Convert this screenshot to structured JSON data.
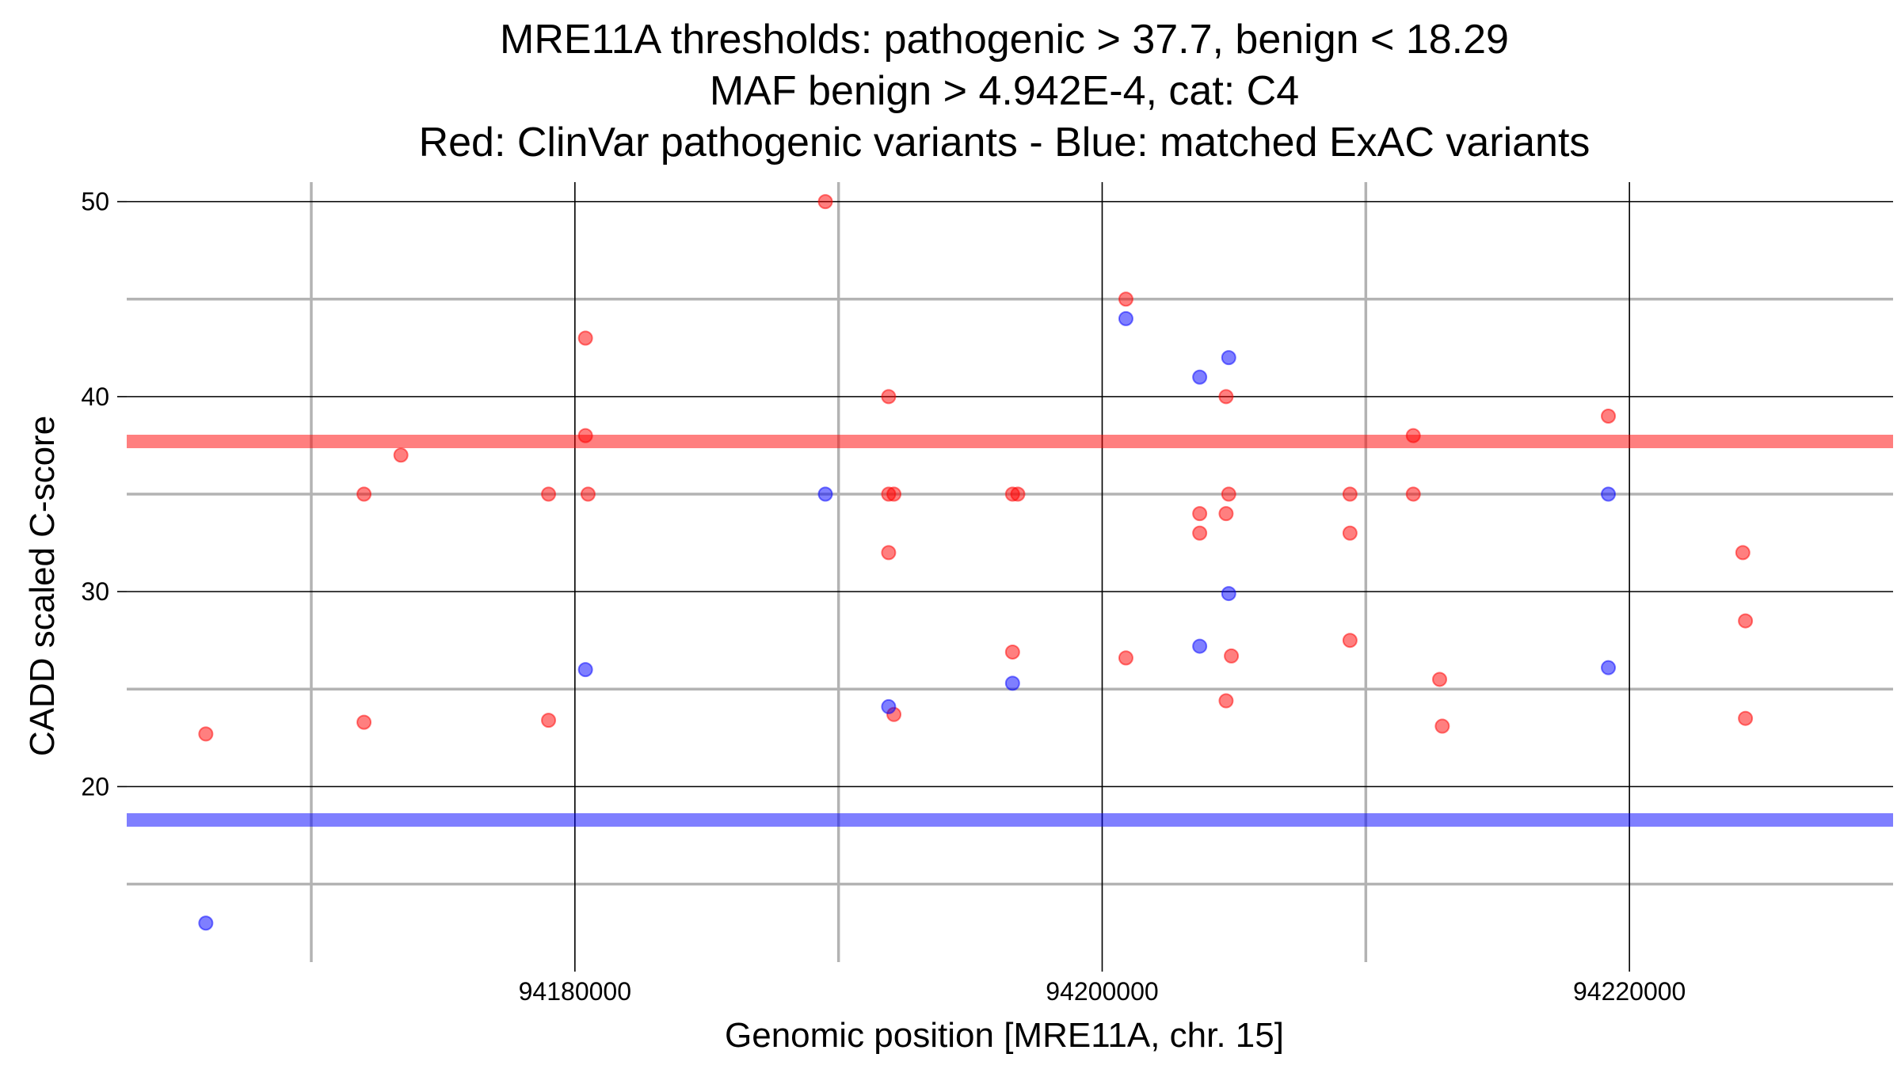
{
  "chart_data": {
    "type": "scatter",
    "title": [
      "MRE11A thresholds: pathogenic > 37.7, benign < 18.29",
      "MAF benign > 4.942E-4, cat: C4",
      "Red: ClinVar pathogenic variants - Blue: matched ExAC variants"
    ],
    "xlabel": "Genomic position [MRE11A, chr. 15]",
    "ylabel": "CADD scaled C-score",
    "xlim": [
      94163000,
      94230000
    ],
    "ylim": [
      11,
      51
    ],
    "x_ticks": [
      94180000,
      94200000,
      94220000
    ],
    "x_tick_labels": [
      "94180000",
      "94200000",
      "94220000"
    ],
    "x_minor_ticks": [
      94170000,
      94190000,
      94210000
    ],
    "y_ticks": [
      20,
      30,
      40,
      50
    ],
    "y_tick_labels": [
      "20",
      "30",
      "40",
      "50"
    ],
    "y_minor_ticks": [
      15,
      25,
      35,
      45
    ],
    "grid": true,
    "legend": "none",
    "thresholds": [
      {
        "label": "pathogenic",
        "value": 37.7,
        "color": "#ff0000"
      },
      {
        "label": "benign",
        "value": 18.29,
        "color": "#0000ff"
      }
    ],
    "series": [
      {
        "color": "#ff0000",
        "points": [
          [
            94166000,
            22.7
          ],
          [
            94172000,
            35
          ],
          [
            94172000,
            23.3
          ],
          [
            94173400,
            37
          ],
          [
            94179000,
            35
          ],
          [
            94179000,
            23.4
          ],
          [
            94180400,
            43
          ],
          [
            94180400,
            38
          ],
          [
            94180500,
            35
          ],
          [
            94189500,
            50
          ],
          [
            94191900,
            40
          ],
          [
            94191900,
            35
          ],
          [
            94192100,
            35
          ],
          [
            94191900,
            32
          ],
          [
            94192100,
            23.7
          ],
          [
            94196600,
            35
          ],
          [
            94196800,
            35
          ],
          [
            94196600,
            26.9
          ],
          [
            94200900,
            45
          ],
          [
            94200900,
            26.6
          ],
          [
            94203700,
            34
          ],
          [
            94203700,
            33
          ],
          [
            94204700,
            40
          ],
          [
            94204700,
            34
          ],
          [
            94204800,
            35
          ],
          [
            94204900,
            26.7
          ],
          [
            94204700,
            24.4
          ],
          [
            94209400,
            35
          ],
          [
            94209400,
            33
          ],
          [
            94209400,
            27.5
          ],
          [
            94211800,
            38
          ],
          [
            94211800,
            35
          ],
          [
            94212800,
            25.5
          ],
          [
            94212900,
            23.1
          ],
          [
            94219200,
            39
          ],
          [
            94224300,
            32
          ],
          [
            94224400,
            28.5
          ],
          [
            94224400,
            23.5
          ]
        ]
      },
      {
        "color": "#0000ff",
        "points": [
          [
            94166000,
            13
          ],
          [
            94180400,
            26
          ],
          [
            94189500,
            35
          ],
          [
            94191900,
            24.1
          ],
          [
            94196600,
            25.3
          ],
          [
            94200900,
            44
          ],
          [
            94203700,
            41
          ],
          [
            94203700,
            27.2
          ],
          [
            94204800,
            42
          ],
          [
            94204800,
            29.9
          ],
          [
            94219200,
            35
          ],
          [
            94219200,
            26.1
          ]
        ]
      }
    ]
  }
}
